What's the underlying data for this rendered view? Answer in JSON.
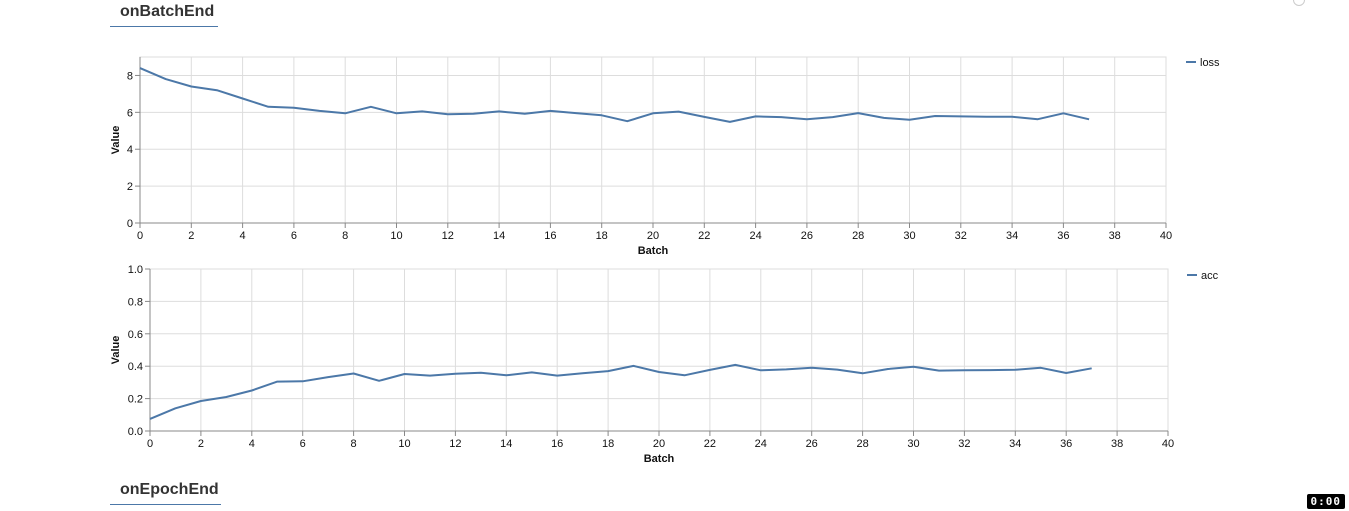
{
  "sections": {
    "batch_title": "onBatchEnd",
    "epoch_title": "onEpochEnd"
  },
  "timer": "0:00",
  "colors": {
    "line": "#4c78a8",
    "grid": "#dddddd",
    "axis": "#888888"
  },
  "chart_data": [
    {
      "type": "line",
      "xlabel": "Batch",
      "ylabel": "Value",
      "xlim": [
        0,
        40
      ],
      "ylim": [
        0,
        9
      ],
      "xticks": [
        0,
        2,
        4,
        6,
        8,
        10,
        12,
        14,
        16,
        18,
        20,
        22,
        24,
        26,
        28,
        30,
        32,
        34,
        36,
        38,
        40
      ],
      "yticks": [
        0,
        2,
        4,
        6,
        8
      ],
      "legend_position": "top-right",
      "grid": true,
      "series": [
        {
          "name": "loss",
          "x": [
            0,
            1,
            2,
            3,
            4,
            5,
            6,
            7,
            8,
            9,
            10,
            11,
            12,
            13,
            14,
            15,
            16,
            17,
            18,
            19,
            20,
            21,
            22,
            23,
            24,
            25,
            26,
            27,
            28,
            29,
            30,
            31,
            32,
            33,
            34,
            35,
            36,
            37
          ],
          "y": [
            8.4,
            7.8,
            7.4,
            7.2,
            6.75,
            6.3,
            6.25,
            6.08,
            5.95,
            6.3,
            5.95,
            6.05,
            5.9,
            5.92,
            6.05,
            5.92,
            6.08,
            5.96,
            5.84,
            5.52,
            5.95,
            6.04,
            5.75,
            5.48,
            5.78,
            5.74,
            5.62,
            5.74,
            5.96,
            5.7,
            5.6,
            5.8,
            5.78,
            5.76,
            5.76,
            5.63,
            5.95,
            5.62
          ]
        }
      ]
    },
    {
      "type": "line",
      "xlabel": "Batch",
      "ylabel": "Value",
      "xlim": [
        0,
        40
      ],
      "ylim": [
        0,
        1
      ],
      "xticks": [
        0,
        2,
        4,
        6,
        8,
        10,
        12,
        14,
        16,
        18,
        20,
        22,
        24,
        26,
        28,
        30,
        32,
        34,
        36,
        38,
        40
      ],
      "yticks": [
        0,
        0.2,
        0.4,
        0.6,
        0.8,
        1
      ],
      "ytick_labels": [
        "0.0",
        "0.2",
        "0.4",
        "0.6",
        "0.8",
        "1.0"
      ],
      "legend_position": "top-right",
      "grid": true,
      "series": [
        {
          "name": "acc",
          "x": [
            0,
            1,
            2,
            3,
            4,
            5,
            6,
            7,
            8,
            9,
            10,
            11,
            12,
            13,
            14,
            15,
            16,
            17,
            18,
            19,
            20,
            21,
            22,
            23,
            24,
            25,
            26,
            27,
            28,
            29,
            30,
            31,
            32,
            33,
            34,
            35,
            36,
            37
          ],
          "y": [
            0.075,
            0.14,
            0.185,
            0.21,
            0.25,
            0.305,
            0.307,
            0.333,
            0.355,
            0.31,
            0.352,
            0.342,
            0.354,
            0.36,
            0.344,
            0.362,
            0.342,
            0.356,
            0.37,
            0.402,
            0.364,
            0.344,
            0.377,
            0.408,
            0.375,
            0.38,
            0.39,
            0.379,
            0.356,
            0.383,
            0.396,
            0.373,
            0.375,
            0.376,
            0.378,
            0.39,
            0.358,
            0.387
          ]
        }
      ]
    }
  ]
}
